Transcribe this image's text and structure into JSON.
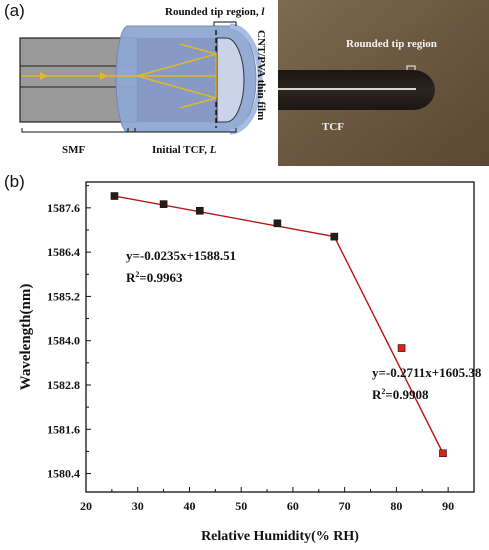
{
  "panel_a": {
    "label": "(a)",
    "schematic": {
      "tip_region_label": "Rounded tip region, ",
      "tip_region_var": "l",
      "film_label": "CNT/PVA thin film",
      "smf_label": "SMF",
      "tcf_label": "Initial TCF, ",
      "tcf_var": "L"
    },
    "micrograph": {
      "tip_label": "Rounded tip region",
      "tcf_label": "TCF"
    }
  },
  "panel_b": {
    "label": "(b)",
    "fit1": {
      "equation": "y=-0.0235x+1588.51",
      "r2_prefix": "R",
      "r2_sup": "2",
      "r2_value": "=0.9963"
    },
    "fit2": {
      "equation": "y=-0.2711x+1605.38",
      "r2_prefix": "R",
      "r2_sup": "2",
      "r2_value": "=0.9908"
    }
  },
  "chart_data": {
    "type": "scatter",
    "xlabel": "Relative Humidity(% RH)",
    "ylabel": "Wavelength(nm)",
    "xlim": [
      20,
      95
    ],
    "ylim": [
      1579.9,
      1588.3
    ],
    "xticks": [
      20,
      30,
      40,
      50,
      60,
      70,
      80,
      90
    ],
    "yticks": [
      "1580.4",
      "1581.6",
      "1582.8",
      "1584.0",
      "1585.2",
      "1586.4",
      "1587.6"
    ],
    "series": [
      {
        "points": [
          [
            25.5,
            1587.92
          ],
          [
            35,
            1587.7
          ],
          [
            42,
            1587.52
          ],
          [
            57,
            1587.18
          ],
          [
            68,
            1586.82
          ]
        ],
        "marker": "square",
        "color": "#2a1a1a"
      },
      {
        "points": [
          [
            81,
            1583.8
          ],
          [
            89,
            1580.95
          ]
        ],
        "marker": "square",
        "color": "#e0201a"
      }
    ],
    "fits": [
      {
        "x": [
          25.5,
          68
        ],
        "y": [
          1587.92,
          1586.82
        ],
        "color": "#b01818"
      },
      {
        "x": [
          68,
          89
        ],
        "y": [
          1586.82,
          1580.95
        ],
        "color": "#b01818"
      }
    ]
  }
}
